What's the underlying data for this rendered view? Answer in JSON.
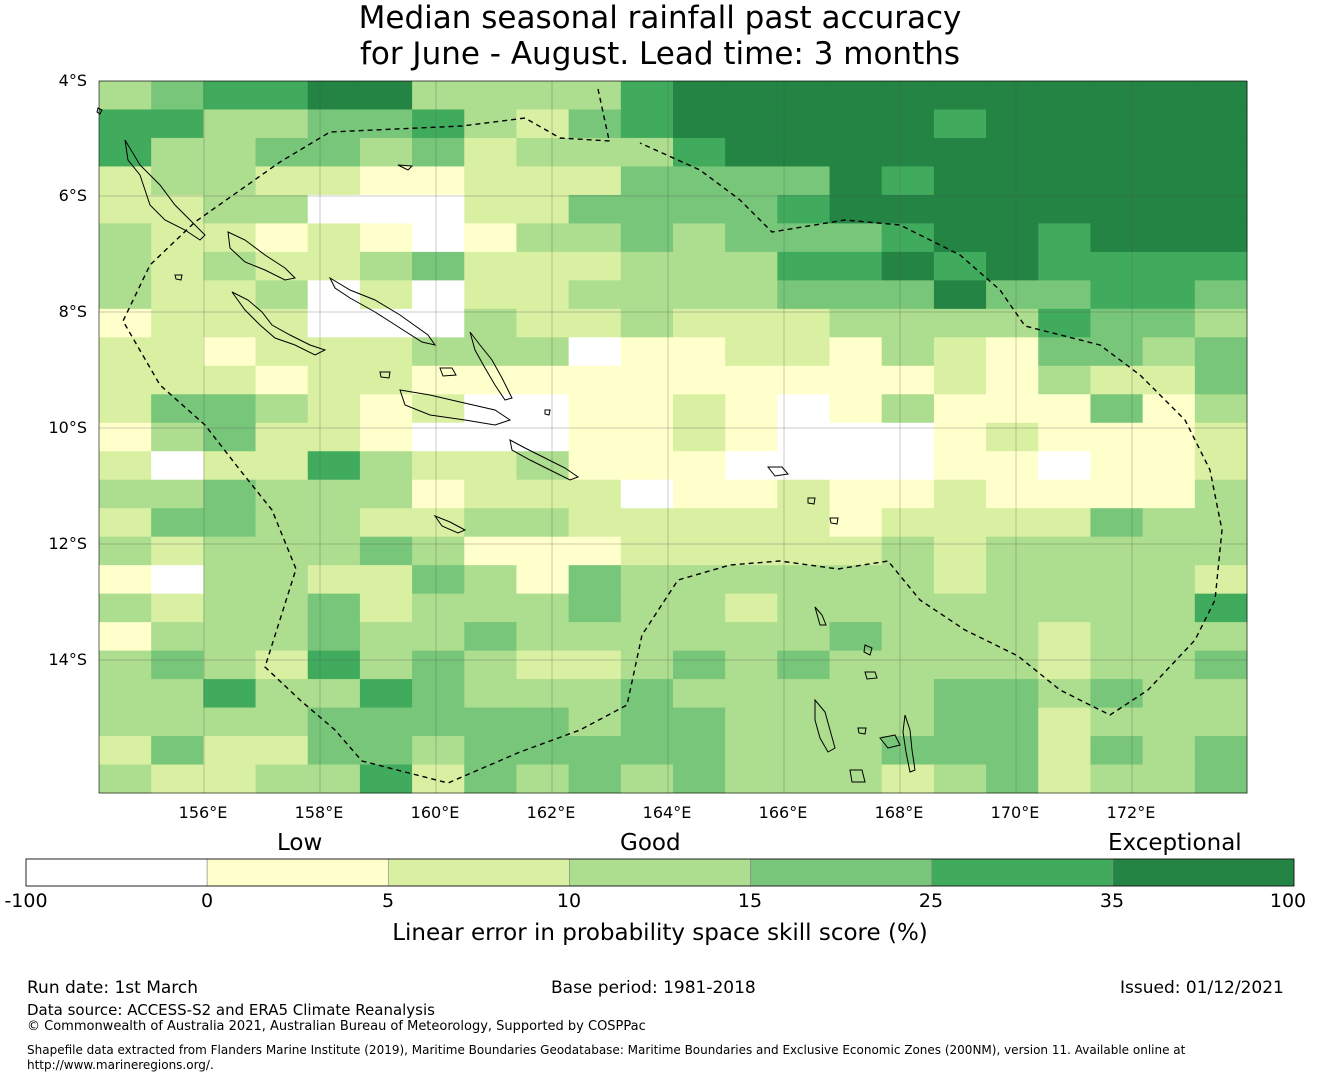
{
  "title": {
    "line1": "Median seasonal rainfall past accuracy",
    "line2": "for June - August. Lead time: 3 months"
  },
  "map": {
    "lat_labels": [
      "4°S",
      "6°S",
      "8°S",
      "10°S",
      "12°S",
      "14°S"
    ],
    "lon_labels": [
      "156°E",
      "158°E",
      "160°E",
      "162°E",
      "164°E",
      "166°E",
      "168°E",
      "170°E",
      "172°E"
    ],
    "palette": [
      "#ffffff",
      "#ffffcc",
      "#d9f0a3",
      "#addd8e",
      "#78c679",
      "#41ab5d",
      "#238443"
    ],
    "skill_grid_rows": [
      "3455663333566666666666",
      "5533445324566666566666",
      "5334434233356666666666",
      "2332211222444465666666",
      "2233000224444566666666",
      "3221210133434445665666",
      "3232234222333556565555",
      "3223020223333444644554",
      "1222000322322233335443",
      "2212223330112213214434",
      "2221221111111111213224",
      "2443212001121013111413",
      "1342210001121000121112",
      "2022532231110000110112",
      "3343331222011211211113",
      "2443322332222212222433",
      "3233343111222223233333",
      "1033224314333333233332",
      "3233423334332333333335",
      "1333433433333343332333",
      "3432534322343433332334",
      "3353354333433333443433",
      "3333444443443333442333",
      "2422443444443334442434",
      "3223352434343332342334"
    ]
  },
  "colorbar": {
    "categories": [
      "Low",
      "Good",
      "Exceptional"
    ],
    "ticks": [
      "-100",
      "0",
      "5",
      "10",
      "15",
      "25",
      "35",
      "100"
    ],
    "label": "Linear error in probability space skill score (%)",
    "colors": [
      "#ffffff",
      "#ffffcc",
      "#d9f0a3",
      "#addd8e",
      "#78c679",
      "#41ab5d",
      "#238443"
    ]
  },
  "footer": {
    "run_date": "Run date: 1st March",
    "base_period": "Base period: 1981-2018",
    "issued": "Issued: 01/12/2021",
    "data_source": "Data source: ACCESS-S2 and ERA5 Climate Reanalysis",
    "copyright": "© Commonwealth of Australia 2021, Australian Bureau of Meteorology, Supported by COSPPac",
    "shapefile_line1": "Shapefile data extracted from Flanders Marine Institute (2019), Maritime Boundaries Geodatabase: Maritime Boundaries and Exclusive Economic Zones (200NM), version 11. Available online at",
    "shapefile_line2": "http://www.marineregions.org/."
  }
}
